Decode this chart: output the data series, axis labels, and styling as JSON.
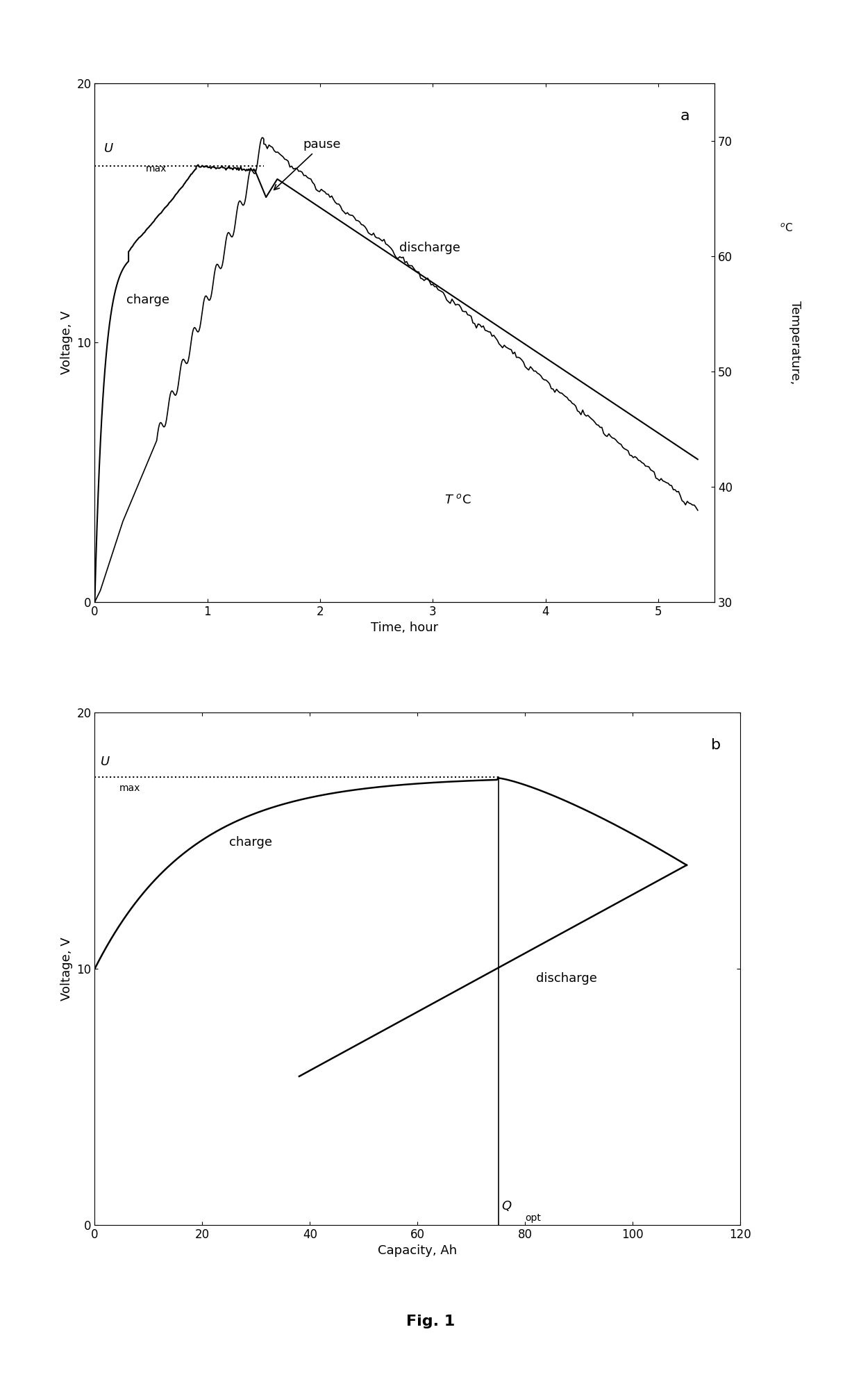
{
  "fig_title": "Fig. 1",
  "panel_a": {
    "label": "a",
    "xlim": [
      0,
      5.5
    ],
    "ylim_left": [
      0,
      20
    ],
    "ylim_right": [
      30,
      75
    ],
    "xlabel": "Time, hour",
    "ylabel_left": "Voltage, V",
    "ylabel_right": "Temperature,",
    "umax_y": 16.8,
    "xticks": [
      0,
      1,
      2,
      3,
      4,
      5
    ],
    "yticks_left": [
      0,
      10,
      20
    ],
    "yticks_right": [
      30,
      40,
      50,
      60,
      70
    ]
  },
  "panel_b": {
    "label": "b",
    "xlim": [
      0,
      120
    ],
    "ylim": [
      0,
      20
    ],
    "xlabel": "Capacity, Ah",
    "ylabel": "Voltage, V",
    "umax_y": 17.5,
    "qopt_x": 75,
    "xticks": [
      0,
      20,
      40,
      60,
      80,
      100,
      120
    ],
    "yticks": [
      0,
      10,
      20
    ]
  }
}
